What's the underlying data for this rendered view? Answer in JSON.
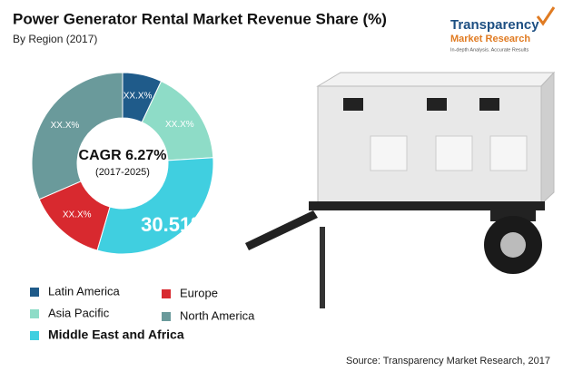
{
  "chart_data": {
    "type": "pie",
    "title": "Power Generator Rental Market Revenue Share (%)",
    "subtitle": "By Region (2017)",
    "center_label": "CAGR 6.27%",
    "center_sublabel": "(2017-2025)",
    "categories": [
      "Latin America",
      "Asia Pacific",
      "Middle East and Africa",
      "Europe",
      "North America"
    ],
    "values": [
      7,
      17,
      30.51,
      14,
      31.49
    ],
    "value_labels": [
      "XX.X%",
      "XX.X%",
      "30.51%",
      "XX.X%",
      "XX.X%"
    ],
    "colors": [
      "#1f5b8a",
      "#8edcc7",
      "#40cfe0",
      "#d8292f",
      "#6a9a9b"
    ],
    "source": "Source: Transparency Market Research, 2017",
    "logo": {
      "name": "Transparency",
      "name2": "Market Research",
      "tagline": "In-depth Analysis. Accurate Results"
    }
  }
}
